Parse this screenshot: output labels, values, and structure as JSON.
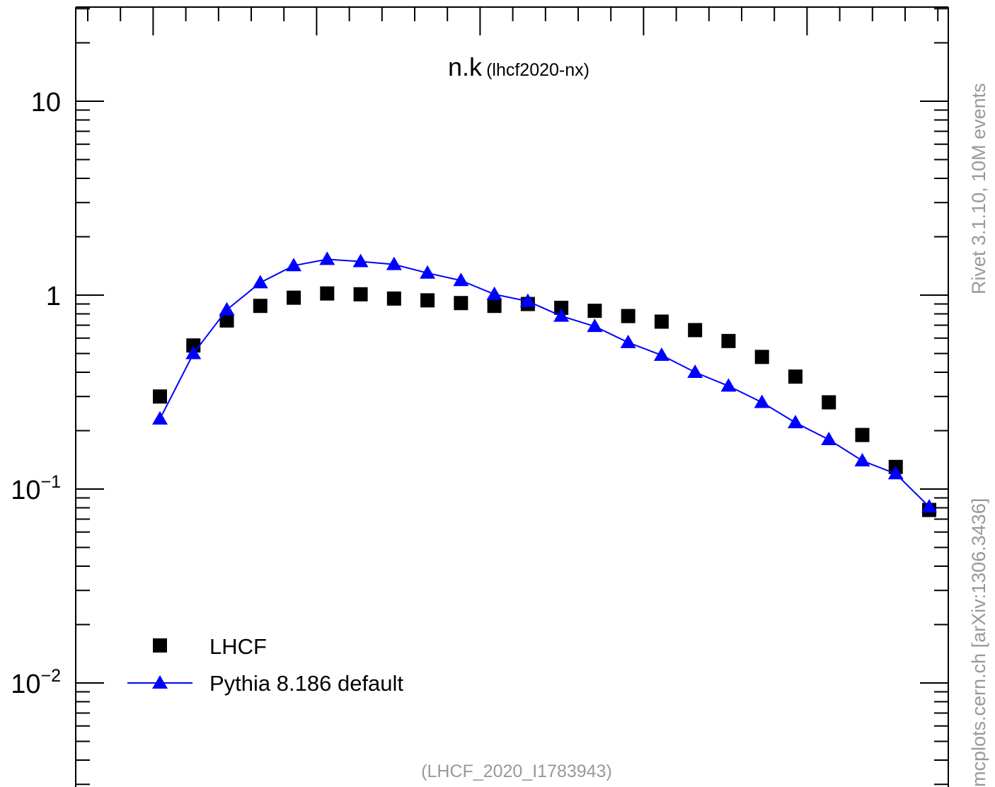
{
  "chart_data": {
    "type": "scatter",
    "title_main": "n.k",
    "title_sub": "(lhcf2020-nx)",
    "footer_label": "(LHCF_2020_I1783943)",
    "side_label_top": "Rivet 3.1.10,  10M events",
    "side_label_bottom": "mcplots.cern.ch [arXiv:1306.3436]",
    "y_scale": "log",
    "ylim": [
      0.003,
      25
    ],
    "y_tick_labels": [
      {
        "value": 10,
        "label": "10"
      },
      {
        "value": 1,
        "label": "1"
      },
      {
        "value": 0.1,
        "label": "10",
        "exp": "−1"
      },
      {
        "value": 0.01,
        "label": "10",
        "exp": "−2"
      }
    ],
    "legend_placement": "bottom-left",
    "series": [
      {
        "name": "LHCF",
        "marker": "square",
        "color": "#000000",
        "values": [
          0.3,
          0.55,
          0.74,
          0.88,
          0.97,
          1.02,
          1.01,
          0.96,
          0.94,
          0.91,
          0.88,
          0.9,
          0.86,
          0.83,
          0.78,
          0.73,
          0.66,
          0.58,
          0.48,
          0.38,
          0.28,
          0.19,
          0.13,
          0.078
        ]
      },
      {
        "name": "Pythia 8.186 default",
        "marker": "triangle",
        "color": "#0000ff",
        "values": [
          0.23,
          0.5,
          0.84,
          1.16,
          1.42,
          1.53,
          1.49,
          1.44,
          1.3,
          1.19,
          1.01,
          0.93,
          0.78,
          0.69,
          0.57,
          0.49,
          0.4,
          0.34,
          0.28,
          0.22,
          0.18,
          0.14,
          0.12,
          0.081
        ]
      }
    ]
  }
}
